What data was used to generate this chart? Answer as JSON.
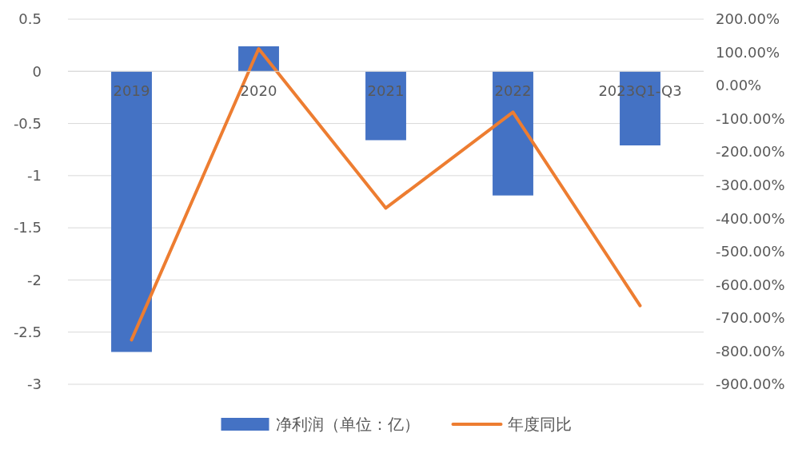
{
  "chart_data": {
    "type": "bar",
    "categories": [
      "2019",
      "2020",
      "2021",
      "2022",
      "2023Q1-Q3"
    ],
    "series": [
      {
        "name": "净利润（单位：亿）",
        "color": "#4472c4",
        "values": [
          -2.69,
          0.24,
          -0.66,
          -1.19,
          -0.71
        ]
      },
      {
        "name": "年度同比",
        "type": "line",
        "axis": "y2",
        "color": "#ed7d31",
        "values": [
          -766,
          111,
          -369,
          -80,
          -663
        ]
      }
    ],
    "ylim": [
      -3,
      0.5
    ],
    "yticks": [
      0.5,
      0,
      -0.5,
      -1,
      -1.5,
      -2,
      -2.5,
      -3
    ],
    "y2lim": [
      -900,
      200
    ],
    "y2ticks": [
      {
        "value": 200,
        "label": "200.00%"
      },
      {
        "value": 100,
        "label": "100.00%"
      },
      {
        "value": 0,
        "label": "0.00%"
      },
      {
        "value": -100,
        "label": "-100.00%"
      },
      {
        "value": -200,
        "label": "-200.00%"
      },
      {
        "value": -300,
        "label": "-300.00%"
      },
      {
        "value": -400,
        "label": "-400.00%"
      },
      {
        "value": -500,
        "label": "-500.00%"
      },
      {
        "value": -600,
        "label": "-600.00%"
      },
      {
        "value": -700,
        "label": "-700.00%"
      },
      {
        "value": -800,
        "label": "-800.00%"
      },
      {
        "value": -900,
        "label": "-900.00%"
      }
    ],
    "grid": "y",
    "legend": "bottom",
    "marker": "none",
    "line_style": "solid"
  }
}
